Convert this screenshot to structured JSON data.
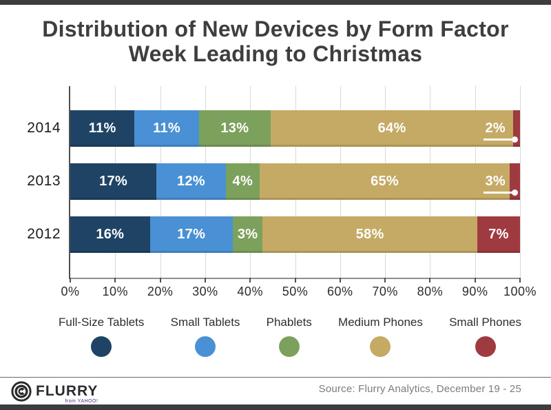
{
  "header": {
    "title_line1": "Distribution of New Devices by Form Factor",
    "title_line2": "Week Leading to Christmas"
  },
  "chart_data": {
    "type": "bar",
    "orientation": "horizontal",
    "stacked": true,
    "title": "Distribution of New Devices by Form Factor Week Leading to Christmas",
    "categories": [
      "2014",
      "2013",
      "2012"
    ],
    "series": [
      {
        "name": "Full-Size Tablets",
        "color": "#1F4365",
        "values": [
          11,
          17,
          16
        ]
      },
      {
        "name": "Small Tablets",
        "color": "#4A90D5",
        "values": [
          11,
          12,
          17
        ]
      },
      {
        "name": "Phablets",
        "color": "#7CA15C",
        "values": [
          13,
          4,
          3
        ]
      },
      {
        "name": "Medium Phones",
        "color": "#C4AA65",
        "values": [
          64,
          65,
          58
        ]
      },
      {
        "name": "Small Phones",
        "color": "#9E3A40",
        "values": [
          2,
          3,
          7
        ]
      }
    ],
    "value_labels": [
      [
        "11%",
        "11%",
        "13%",
        "64%",
        "2%"
      ],
      [
        "17%",
        "12%",
        "4%",
        "65%",
        "3%"
      ],
      [
        "16%",
        "17%",
        "3%",
        "58%",
        "7%"
      ]
    ],
    "callouts": [
      [
        false,
        false,
        false,
        false,
        true
      ],
      [
        false,
        false,
        false,
        false,
        true
      ],
      [
        false,
        false,
        false,
        false,
        false
      ]
    ],
    "x_ticks": [
      "0%",
      "10%",
      "20%",
      "30%",
      "40%",
      "50%",
      "60%",
      "70%",
      "80%",
      "90%",
      "100%"
    ],
    "xlim": [
      0,
      100
    ],
    "grid": true,
    "legend_position": "bottom"
  },
  "legend": {
    "items": [
      {
        "label": "Full-Size Tablets",
        "color": "#1F4365"
      },
      {
        "label": "Small Tablets",
        "color": "#4A90D5"
      },
      {
        "label": "Phablets",
        "color": "#7CA15C"
      },
      {
        "label": "Medium Phones",
        "color": "#C4AA65"
      },
      {
        "label": "Small Phones",
        "color": "#9E3A40"
      }
    ]
  },
  "footer": {
    "logo_text": "FLURRY",
    "logo_sub": "from YAHOO!",
    "source": "Source: Flurry Analytics, December 19 - 25"
  }
}
